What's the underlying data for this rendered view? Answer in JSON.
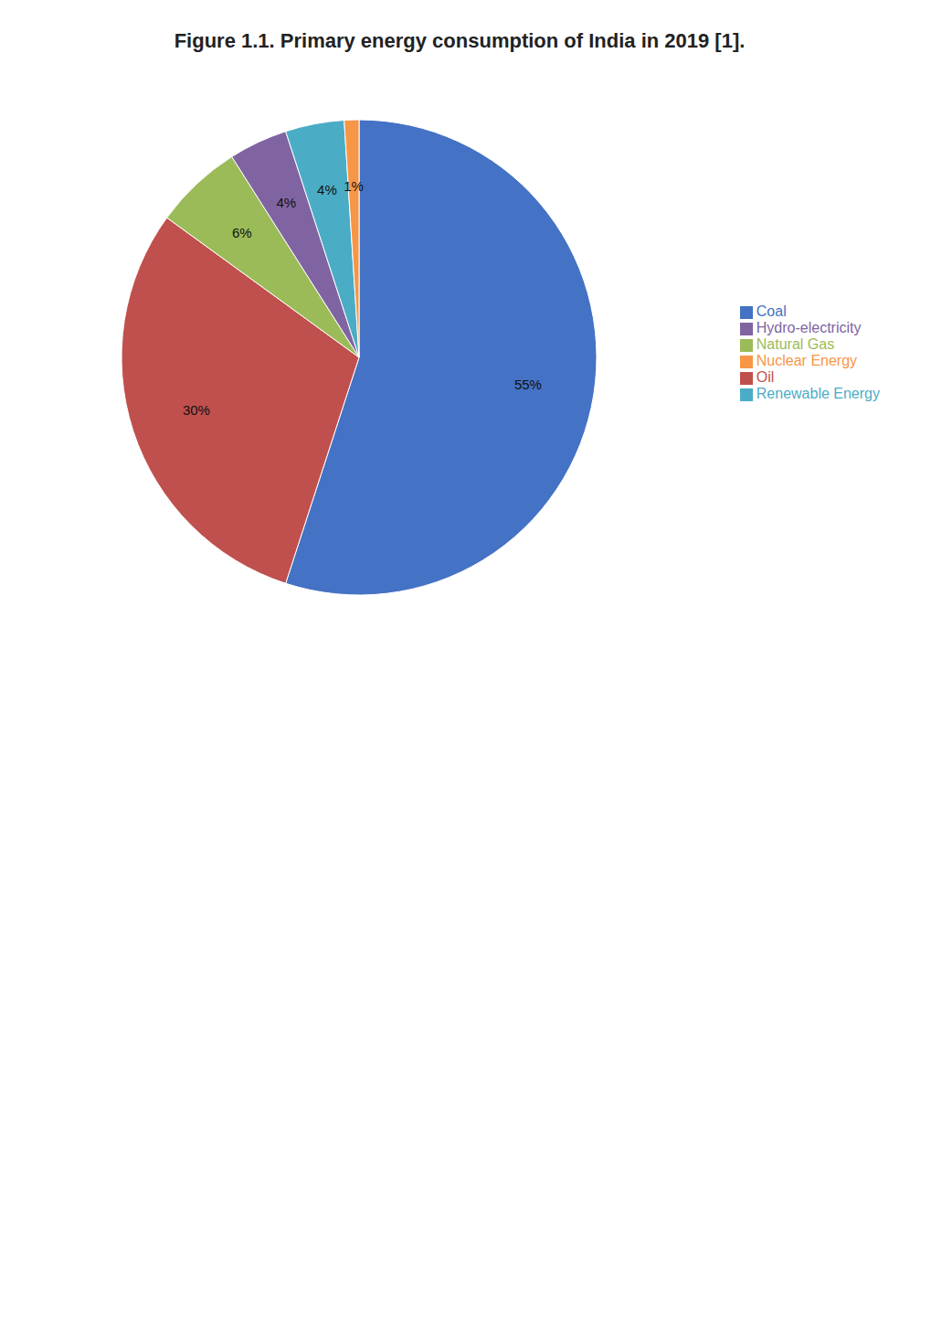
{
  "chart_data": {
    "type": "pie",
    "title": "Figure 1.1. Primary energy consumption of India in 2019 [1].",
    "categories": [
      "Coal",
      "Oil",
      "Natural Gas",
      "Hydro-electricity",
      "Renewable Energy",
      "Nuclear Energy"
    ],
    "values": [
      55,
      30,
      6,
      4,
      4,
      1
    ],
    "value_labels": [
      "55%",
      "30%",
      "6%",
      "4%",
      "4%",
      "1%"
    ],
    "colors": [
      "#4472C4",
      "#C0504D",
      "#9BBB59",
      "#8064A2",
      "#4BACC6",
      "#F79646"
    ],
    "data_labels": true,
    "legend": "right"
  }
}
